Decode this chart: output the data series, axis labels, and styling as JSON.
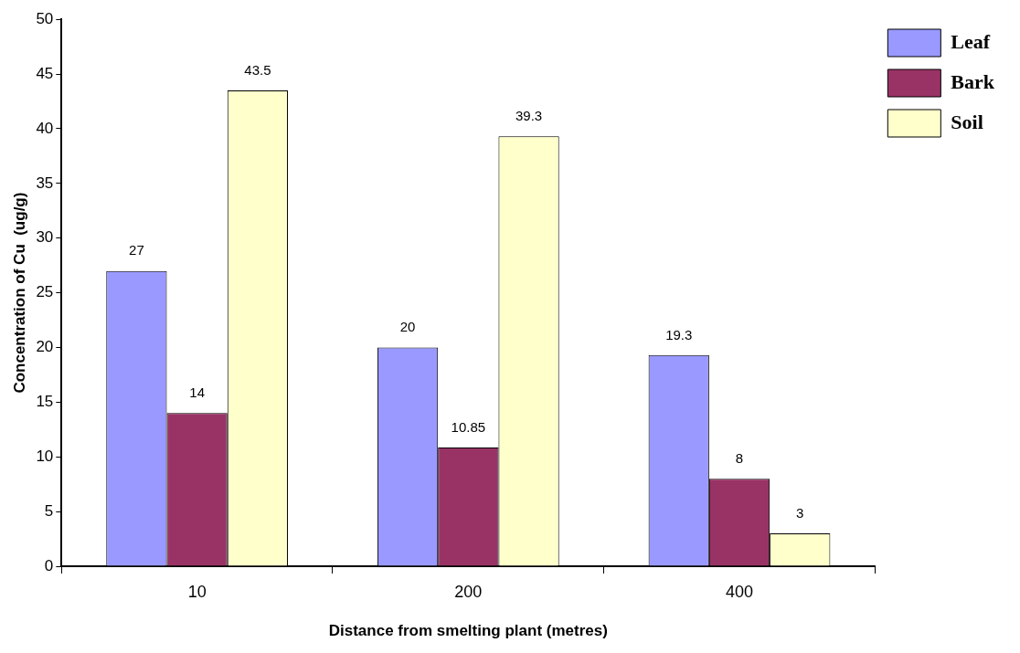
{
  "chart_data": {
    "type": "bar",
    "xlabel": "Distance from smelting plant (metres)",
    "ylabel": "Concentration of Cu  (ug/g)",
    "categories": [
      "10",
      "200",
      "400"
    ],
    "series": [
      {
        "name": "Leaf",
        "color": "#9999ff",
        "values": [
          27,
          20,
          19.3
        ]
      },
      {
        "name": "Bark",
        "color": "#993366",
        "values": [
          14,
          10.85,
          8
        ]
      },
      {
        "name": "Soil",
        "color": "#ffffcc",
        "values": [
          43.5,
          39.3,
          3
        ]
      }
    ],
    "ylim": [
      0,
      50
    ],
    "yticks": [
      0,
      5,
      10,
      15,
      20,
      25,
      30,
      35,
      40,
      45,
      50
    ],
    "grid": false,
    "legend": "top right",
    "data_labels": true
  }
}
